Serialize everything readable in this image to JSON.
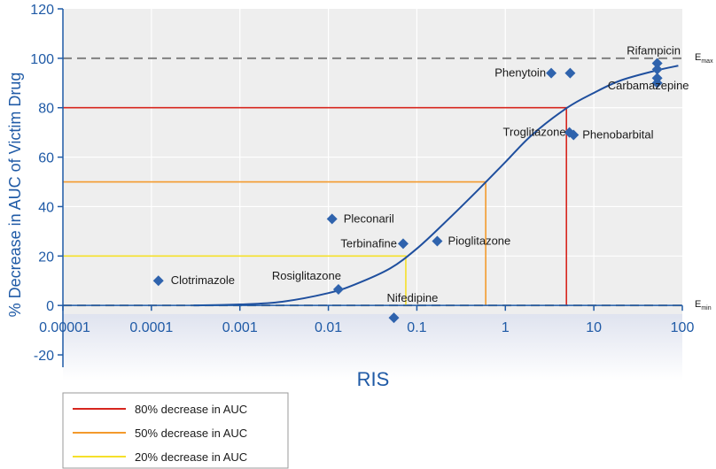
{
  "chart_data": {
    "type": "scatter",
    "title": "",
    "xlabel": "RIS",
    "ylabel": "% Decrease in AUC of Victim Drug",
    "x_scale": "log",
    "xlim": [
      1e-05,
      100
    ],
    "ylim": [
      -25,
      120
    ],
    "x_ticks": [
      "0.00001",
      "0.0001",
      "0.001",
      "0.01",
      "0.1",
      "1",
      "10",
      "100"
    ],
    "y_ticks": [
      "-20",
      "0",
      "20",
      "40",
      "60",
      "80",
      "100",
      "120"
    ],
    "grid": true,
    "legend_position": "bottom-left",
    "reference_lines": [
      {
        "name": "Emax",
        "label_main": "E",
        "label_sub": "max",
        "y": 100
      },
      {
        "name": "Emin",
        "label_main": "E",
        "label_sub": "min",
        "y": 0
      }
    ],
    "decrease_lines": [
      {
        "name": "80% decrease in AUC",
        "y": 80,
        "x": 4.9,
        "color": "#d7261e"
      },
      {
        "name": "50% decrease in AUC",
        "y": 50,
        "x": 0.6,
        "color": "#f39a2c"
      },
      {
        "name": "20% decrease in AUC",
        "y": 20,
        "x": 0.075,
        "color": "#f5e02a"
      }
    ],
    "points": [
      {
        "label": "Clotrimazole",
        "x": 0.00012,
        "y": 10
      },
      {
        "label": "Rosiglitazone",
        "x": 0.013,
        "y": 6.5
      },
      {
        "label": "Pleconaril",
        "x": 0.011,
        "y": 35
      },
      {
        "label": "Terbinafine",
        "x": 0.07,
        "y": 25
      },
      {
        "label": "Pioglitazone",
        "x": 0.17,
        "y": 26
      },
      {
        "label": "Nifedipine",
        "x": 0.055,
        "y": -5
      },
      {
        "label": "Phenytoin",
        "x": 3.3,
        "y": 94
      },
      {
        "label": "",
        "x": 5.4,
        "y": 94
      },
      {
        "label": "Troglitazone",
        "x": 5.3,
        "y": 70
      },
      {
        "label": "Phenobarbital",
        "x": 5.9,
        "y": 69
      },
      {
        "label": "Rifampicin",
        "x": 52,
        "y": 98
      },
      {
        "label": "",
        "x": 52,
        "y": 95.5
      },
      {
        "label": "Carbamazepine",
        "x": 52,
        "y": 92
      },
      {
        "label": "",
        "x": 52,
        "y": 90
      }
    ],
    "fit_curve": [
      [
        0.0003,
        0
      ],
      [
        0.001,
        0.4
      ],
      [
        0.003,
        1.5
      ],
      [
        0.01,
        5
      ],
      [
        0.02,
        8.5
      ],
      [
        0.05,
        15
      ],
      [
        0.1,
        23
      ],
      [
        0.2,
        33
      ],
      [
        0.5,
        47
      ],
      [
        1,
        58
      ],
      [
        2,
        69
      ],
      [
        5,
        80
      ],
      [
        10,
        86
      ],
      [
        20,
        91
      ],
      [
        50,
        95
      ],
      [
        90,
        97
      ]
    ],
    "colors": {
      "axis": "#1f5aa6",
      "marker": "#2f63ad",
      "curve": "#1f4f9e",
      "reference": "#808080",
      "plot_bg": "#eeeeee"
    }
  }
}
